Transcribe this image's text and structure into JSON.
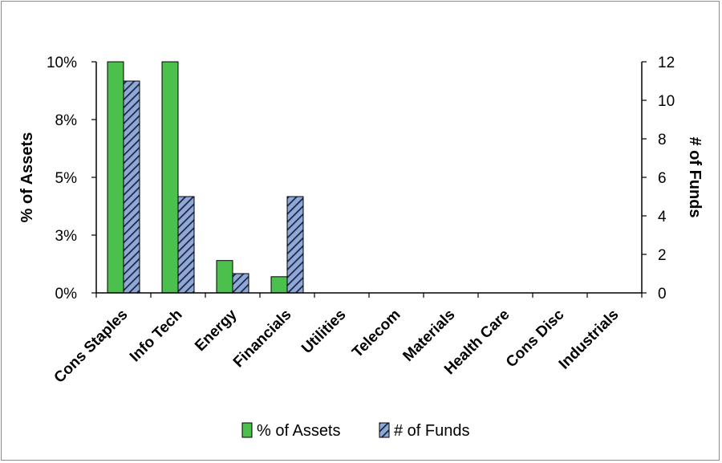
{
  "chart_data": {
    "type": "bar",
    "categories": [
      "Cons Staples",
      "Info Tech",
      "Energy",
      "Financials",
      "Utilities",
      "Telecom",
      "Materials",
      "Health Care",
      "Cons Disc",
      "Industrials"
    ],
    "series": [
      {
        "name": "% of Assets",
        "axis": "left",
        "color": "#4cc04c",
        "values": [
          10.0,
          10.0,
          1.4,
          0.7,
          0,
          0,
          0,
          0,
          0,
          0
        ]
      },
      {
        "name": "# of Funds",
        "axis": "right",
        "color": "#8ea9d8",
        "pattern": "diagonal-hatch",
        "values": [
          11,
          5,
          1,
          5,
          0,
          0,
          0,
          0,
          0,
          0
        ]
      }
    ],
    "ylabel": "% of Assets",
    "ylabel_right": "# of Funds",
    "ylim": [
      0,
      10
    ],
    "ylim_right": [
      0,
      12
    ],
    "yticks": [
      "0%",
      "3%",
      "5%",
      "8%",
      "10%"
    ],
    "yticks_right": [
      "0",
      "2",
      "4",
      "6",
      "8",
      "10",
      "12"
    ],
    "grid": false,
    "legend_position": "bottom"
  }
}
